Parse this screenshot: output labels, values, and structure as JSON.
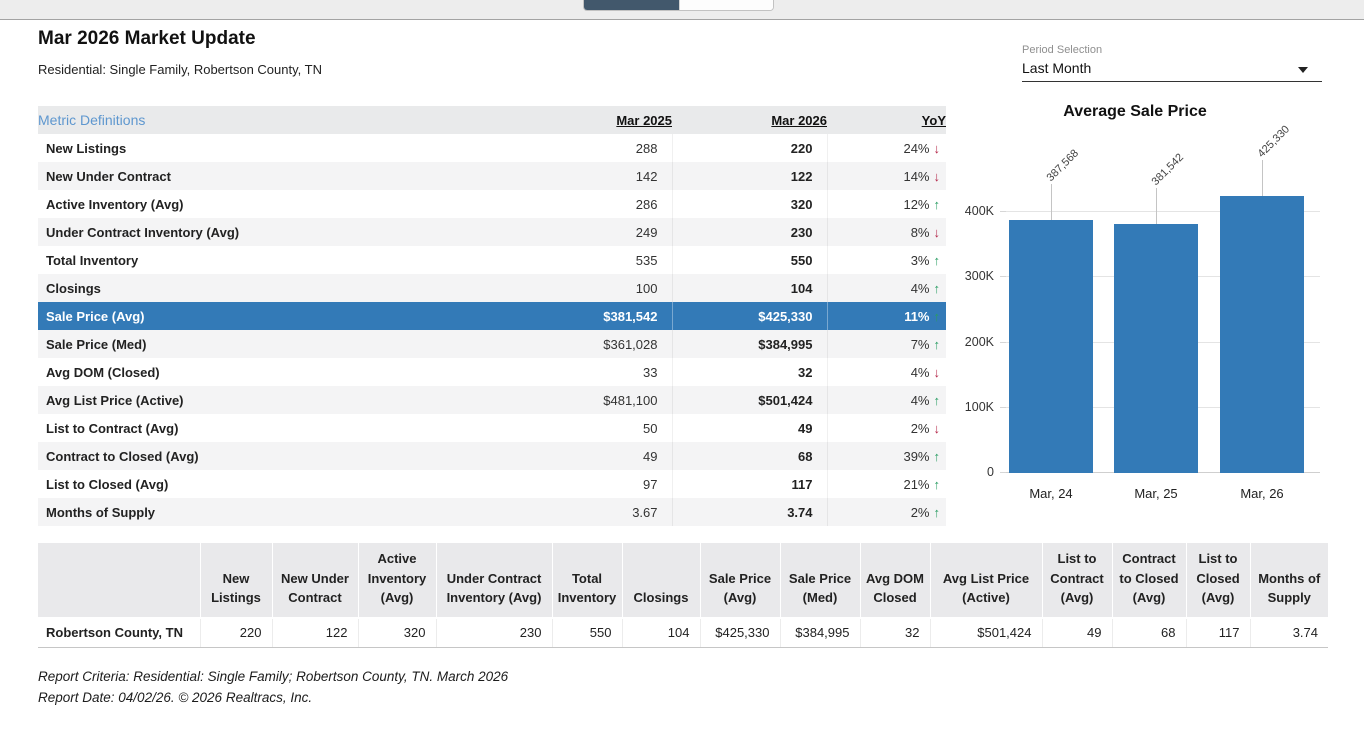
{
  "page": {
    "title": "Mar 2026 Market Update",
    "subtitle": "Residential: Single Family, Robertson County, TN",
    "footer_line1": "Report Criteria: Residential: Single Family; Robertson County, TN. March 2026",
    "footer_line2": "Report Date: 04/02/26. © 2026 Realtracs, Inc."
  },
  "period_selection": {
    "label": "Period Selection",
    "value": "Last Month"
  },
  "metrics_table": {
    "definitions_link": "Metric Definitions",
    "columns": {
      "prev": "Mar 2025",
      "curr": "Mar 2026",
      "yoy": "YoY"
    },
    "rows": [
      {
        "label": "New Listings",
        "prev": "288",
        "curr": "220",
        "yoy": "24%",
        "arrow": "↓",
        "trend": "down"
      },
      {
        "label": "New Under Contract",
        "prev": "142",
        "curr": "122",
        "yoy": "14%",
        "arrow": "↓",
        "trend": "down"
      },
      {
        "label": "Active Inventory (Avg)",
        "prev": "286",
        "curr": "320",
        "yoy": "12%",
        "arrow": "↑",
        "trend": "up"
      },
      {
        "label": "Under Contract Inventory (Avg)",
        "prev": "249",
        "curr": "230",
        "yoy": "8%",
        "arrow": "↓",
        "trend": "down"
      },
      {
        "label": "Total Inventory",
        "prev": "535",
        "curr": "550",
        "yoy": "3%",
        "arrow": "↑",
        "trend": "up"
      },
      {
        "label": "Closings",
        "prev": "100",
        "curr": "104",
        "yoy": "4%",
        "arrow": "↑",
        "trend": "up"
      },
      {
        "label": "Sale Price (Avg)",
        "prev": "$381,542",
        "curr": "$425,330",
        "yoy": "11%",
        "arrow": "↑",
        "trend": "up",
        "highlight": "true"
      },
      {
        "label": "Sale Price (Med)",
        "prev": "$361,028",
        "curr": "$384,995",
        "yoy": "7%",
        "arrow": "↑",
        "trend": "up"
      },
      {
        "label": "Avg DOM (Closed)",
        "prev": "33",
        "curr": "32",
        "yoy": "4%",
        "arrow": "↓",
        "trend": "down"
      },
      {
        "label": "Avg List Price (Active)",
        "prev": "$481,100",
        "curr": "$501,424",
        "yoy": "4%",
        "arrow": "↑",
        "trend": "up"
      },
      {
        "label": "List to Contract (Avg)",
        "prev": "50",
        "curr": "49",
        "yoy": "2%",
        "arrow": "↓",
        "trend": "down"
      },
      {
        "label": "Contract to Closed (Avg)",
        "prev": "49",
        "curr": "68",
        "yoy": "39%",
        "arrow": "↑",
        "trend": "up"
      },
      {
        "label": "List to Closed (Avg)",
        "prev": "97",
        "curr": "117",
        "yoy": "21%",
        "arrow": "↑",
        "trend": "up"
      },
      {
        "label": "Months of Supply",
        "prev": "3.67",
        "curr": "3.74",
        "yoy": "2%",
        "arrow": "↑",
        "trend": "up"
      }
    ]
  },
  "chart_data": {
    "type": "bar",
    "title": "Average Sale Price",
    "categories": [
      "Mar, 24",
      "Mar, 25",
      "Mar, 26"
    ],
    "values": [
      387568,
      381542,
      425330
    ],
    "value_labels": [
      "387,568",
      "381,542",
      "425,330"
    ],
    "ytick_values": [
      0,
      100000,
      200000,
      300000,
      400000
    ],
    "ytick_labels": [
      "0",
      "100K",
      "200K",
      "300K",
      "400K"
    ],
    "axis_max": 487500,
    "ylim": [
      0,
      487500
    ],
    "xlabel": "",
    "ylabel": "",
    "grid": true,
    "legend": "none",
    "bar_color": "#337ab7"
  },
  "summary_table": {
    "columns": [
      "New Listings",
      "New Under Contract",
      "Active Inventory (Avg)",
      "Under Contract Inventory (Avg)",
      "Total Inventory",
      "Closings",
      "Sale Price (Avg)",
      "Sale Price (Med)",
      "Avg DOM Closed",
      "Avg List Price (Active)",
      "List to Contract (Avg)",
      "Contract to Closed (Avg)",
      "List to Closed (Avg)",
      "Months of Supply"
    ],
    "row_label": "Robertson County, TN",
    "row_values": [
      "220",
      "122",
      "320",
      "230",
      "550",
      "104",
      "$425,330",
      "$384,995",
      "32",
      "$501,424",
      "49",
      "68",
      "117",
      "3.74"
    ]
  },
  "colors": {
    "accent_blue": "#337ab7",
    "link_blue": "#5e97cf",
    "trend_up_green": "#2a9d63",
    "trend_down_red": "#b5294b",
    "header_gray": "#e9eaeb",
    "toggle_dark": "#42586c"
  }
}
